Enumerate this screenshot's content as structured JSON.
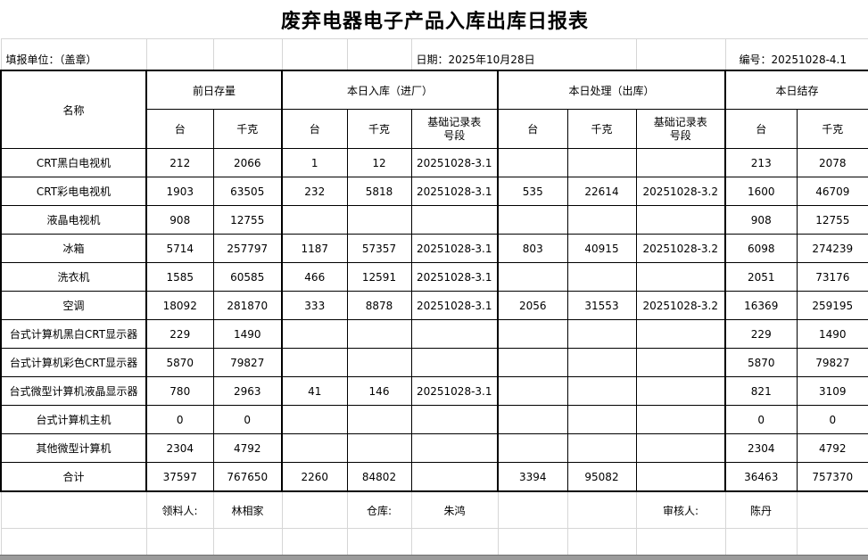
{
  "title": "废弃电器电子产品入库出库日报表",
  "info_row": {
    "unit": "填报单位：（盖章）",
    "date": "日期：2025年10月28日",
    "code": "编号：20251028-4.1"
  },
  "table": {
    "name_header": "名称",
    "groups": [
      {
        "label": "前日存量",
        "cols": [
          "台",
          "千克"
        ]
      },
      {
        "label": "本日入库（进厂）",
        "cols": [
          "台",
          "千克",
          "基础记录表\n号段"
        ]
      },
      {
        "label": "本日处理（出库）",
        "cols": [
          "台",
          "千克",
          "基础记录表\n号段"
        ]
      },
      {
        "label": "本日结存",
        "cols": [
          "台",
          "千克"
        ]
      }
    ],
    "rows": [
      {
        "name": "CRT黑白电视机",
        "cells": [
          "212",
          "2066",
          "1",
          "12",
          "20251028-3.1",
          "",
          "",
          "",
          "213",
          "2078"
        ]
      },
      {
        "name": "CRT彩电电视机",
        "cells": [
          "1903",
          "63505",
          "232",
          "5818",
          "20251028-3.1",
          "535",
          "22614",
          "20251028-3.2",
          "1600",
          "46709"
        ]
      },
      {
        "name": "液晶电视机",
        "cells": [
          "908",
          "12755",
          "",
          "",
          "",
          "",
          "",
          "",
          "908",
          "12755"
        ]
      },
      {
        "name": "冰箱",
        "cells": [
          "5714",
          "257797",
          "1187",
          "57357",
          "20251028-3.1",
          "803",
          "40915",
          "20251028-3.2",
          "6098",
          "274239"
        ]
      },
      {
        "name": "洗衣机",
        "cells": [
          "1585",
          "60585",
          "466",
          "12591",
          "20251028-3.1",
          "",
          "",
          "",
          "2051",
          "73176"
        ]
      },
      {
        "name": "空调",
        "cells": [
          "18092",
          "281870",
          "333",
          "8878",
          "20251028-3.1",
          "2056",
          "31553",
          "20251028-3.2",
          "16369",
          "259195"
        ]
      },
      {
        "name": "台式计算机黑白CRT显示器",
        "cells": [
          "229",
          "1490",
          "",
          "",
          "",
          "",
          "",
          "",
          "229",
          "1490"
        ]
      },
      {
        "name": "台式计算机彩色CRT显示器",
        "cells": [
          "5870",
          "79827",
          "",
          "",
          "",
          "",
          "",
          "",
          "5870",
          "79827"
        ]
      },
      {
        "name": "台式微型计算机液晶显示器",
        "cells": [
          "780",
          "2963",
          "41",
          "146",
          "20251028-3.1",
          "",
          "",
          "",
          "821",
          "3109"
        ]
      },
      {
        "name": "台式计算机主机",
        "cells": [
          "0",
          "0",
          "",
          "",
          "",
          "",
          "",
          "",
          "0",
          "0"
        ]
      },
      {
        "name": "其他微型计算机",
        "cells": [
          "2304",
          "4792",
          "",
          "",
          "",
          "",
          "",
          "",
          "2304",
          "4792"
        ]
      },
      {
        "name": "合计",
        "cells": [
          "37597",
          "767650",
          "2260",
          "84802",
          "",
          "3394",
          "95082",
          "",
          "36463",
          "757370"
        ]
      }
    ]
  },
  "signatures": {
    "picker_label": "领料人:",
    "picker_name": "林相家",
    "warehouse_label": "仓库:",
    "warehouse_name": "朱鸿",
    "auditor_label": "审核人:",
    "auditor_name": "陈丹"
  },
  "colors": {
    "grid_line": "#d6d6d6",
    "table_border": "#000000",
    "bottom_bar": "#9b9b9b"
  }
}
